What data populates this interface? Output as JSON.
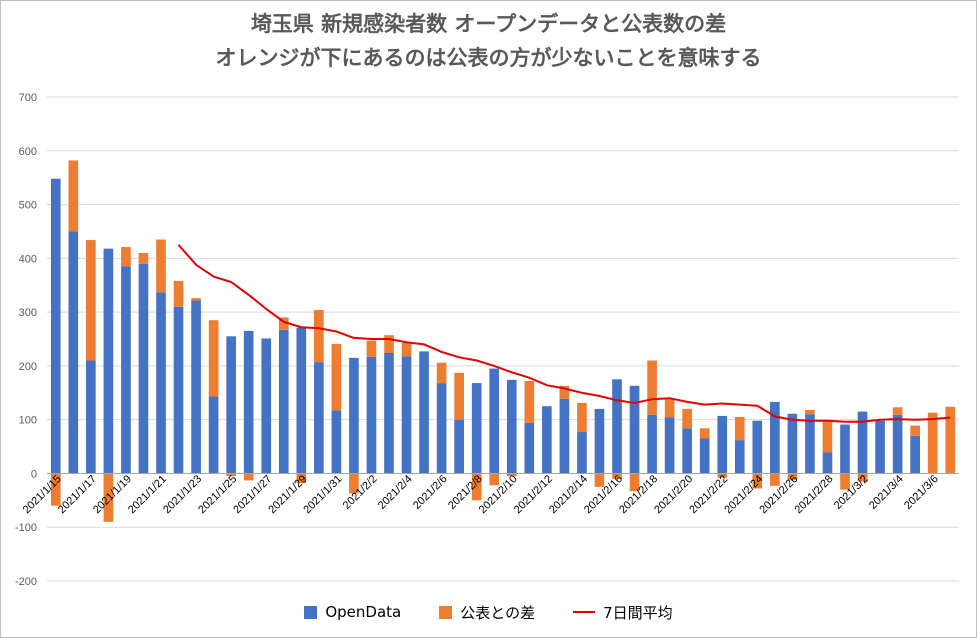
{
  "chart_data": {
    "type": "bar",
    "title_line1": "埼玉県 新規感染者数 オープンデータと公表数の差",
    "title_line2": "オレンジが下にあるのは公表の方が少ないことを意味する",
    "ylim": [
      -200,
      700
    ],
    "yticks": [
      "-200",
      "-100",
      "0",
      "100",
      "200",
      "300",
      "400",
      "500",
      "600",
      "700"
    ],
    "grid": true,
    "legend_position": "bottom",
    "stacked": true,
    "colors": {
      "OpenData": "#4472c4",
      "diff": "#ed7d31",
      "avg": "#e30000",
      "grid": "#d9d9d9"
    },
    "categories": [
      "2021/1/15",
      "2021/1/16",
      "2021/1/17",
      "2021/1/18",
      "2021/1/19",
      "2021/1/20",
      "2021/1/21",
      "2021/1/22",
      "2021/1/23",
      "2021/1/24",
      "2021/1/25",
      "2021/1/26",
      "2021/1/27",
      "2021/1/28",
      "2021/1/29",
      "2021/1/30",
      "2021/1/31",
      "2021/2/1",
      "2021/2/2",
      "2021/2/3",
      "2021/2/4",
      "2021/2/5",
      "2021/2/6",
      "2021/2/7",
      "2021/2/8",
      "2021/2/9",
      "2021/2/10",
      "2021/2/11",
      "2021/2/12",
      "2021/2/13",
      "2021/2/14",
      "2021/2/15",
      "2021/2/16",
      "2021/2/17",
      "2021/2/18",
      "2021/2/19",
      "2021/2/20",
      "2021/2/21",
      "2021/2/22",
      "2021/2/23",
      "2021/2/24",
      "2021/2/25",
      "2021/2/26",
      "2021/2/27",
      "2021/2/28",
      "2021/3/1",
      "2021/3/2",
      "2021/3/3",
      "2021/3/4",
      "2021/3/5",
      "2021/3/6",
      "2021/3/7"
    ],
    "xtick_labels": [
      "2021/1/15",
      "",
      "2021/1/17",
      "",
      "2021/1/19",
      "",
      "2021/1/21",
      "",
      "2021/1/23",
      "",
      "2021/1/25",
      "",
      "2021/1/27",
      "",
      "2021/1/29",
      "",
      "2021/1/31",
      "",
      "2021/2/2",
      "",
      "2021/2/4",
      "",
      "2021/2/6",
      "",
      "2021/2/8",
      "",
      "2021/2/10",
      "",
      "2021/2/12",
      "",
      "2021/2/14",
      "",
      "2021/2/16",
      "",
      "2021/2/18",
      "",
      "2021/2/20",
      "",
      "2021/2/22",
      "",
      "2021/2/24",
      "",
      "2021/2/26",
      "",
      "2021/2/28",
      "",
      "2021/3/2",
      "",
      "2021/3/4",
      "",
      "2021/3/6",
      ""
    ],
    "series": [
      {
        "name": "OpenData",
        "kind": "bar",
        "values": [
          548,
          450,
          210,
          418,
          385,
          390,
          337,
          310,
          322,
          143,
          255,
          265,
          251,
          267,
          271,
          207,
          117,
          215,
          217,
          224,
          218,
          227,
          168,
          100,
          168,
          195,
          174,
          94,
          125,
          139,
          77,
          120,
          175,
          163,
          109,
          104,
          84,
          65,
          107,
          62,
          98,
          133,
          111,
          110,
          39,
          91,
          115,
          98,
          109,
          70,
          0,
          0
        ]
      },
      {
        "name": "公表との差",
        "kind": "bar",
        "values": [
          -60,
          132,
          224,
          -90,
          36,
          20,
          98,
          48,
          4,
          142,
          -5,
          -13,
          0,
          23,
          -18,
          97,
          124,
          -37,
          30,
          33,
          25,
          0,
          38,
          87,
          -50,
          -22,
          -5,
          78,
          0,
          24,
          54,
          -25,
          -10,
          -33,
          101,
          36,
          36,
          19,
          -8,
          43,
          -28,
          -23,
          -12,
          8,
          60,
          -30,
          -15,
          0,
          14,
          19,
          113,
          124
        ]
      },
      {
        "name": "7日間平均",
        "kind": "line",
        "values": [
          null,
          null,
          null,
          null,
          null,
          null,
          null,
          425,
          388,
          366,
          356,
          332,
          306,
          282,
          272,
          270,
          264,
          252,
          250,
          250,
          244,
          240,
          226,
          216,
          210,
          200,
          188,
          178,
          164,
          158,
          150,
          144,
          136,
          131,
          138,
          140,
          133,
          128,
          130,
          128,
          126,
          106,
          100,
          98,
          98,
          96,
          96,
          100,
          101,
          100,
          101,
          104
        ]
      }
    ]
  }
}
